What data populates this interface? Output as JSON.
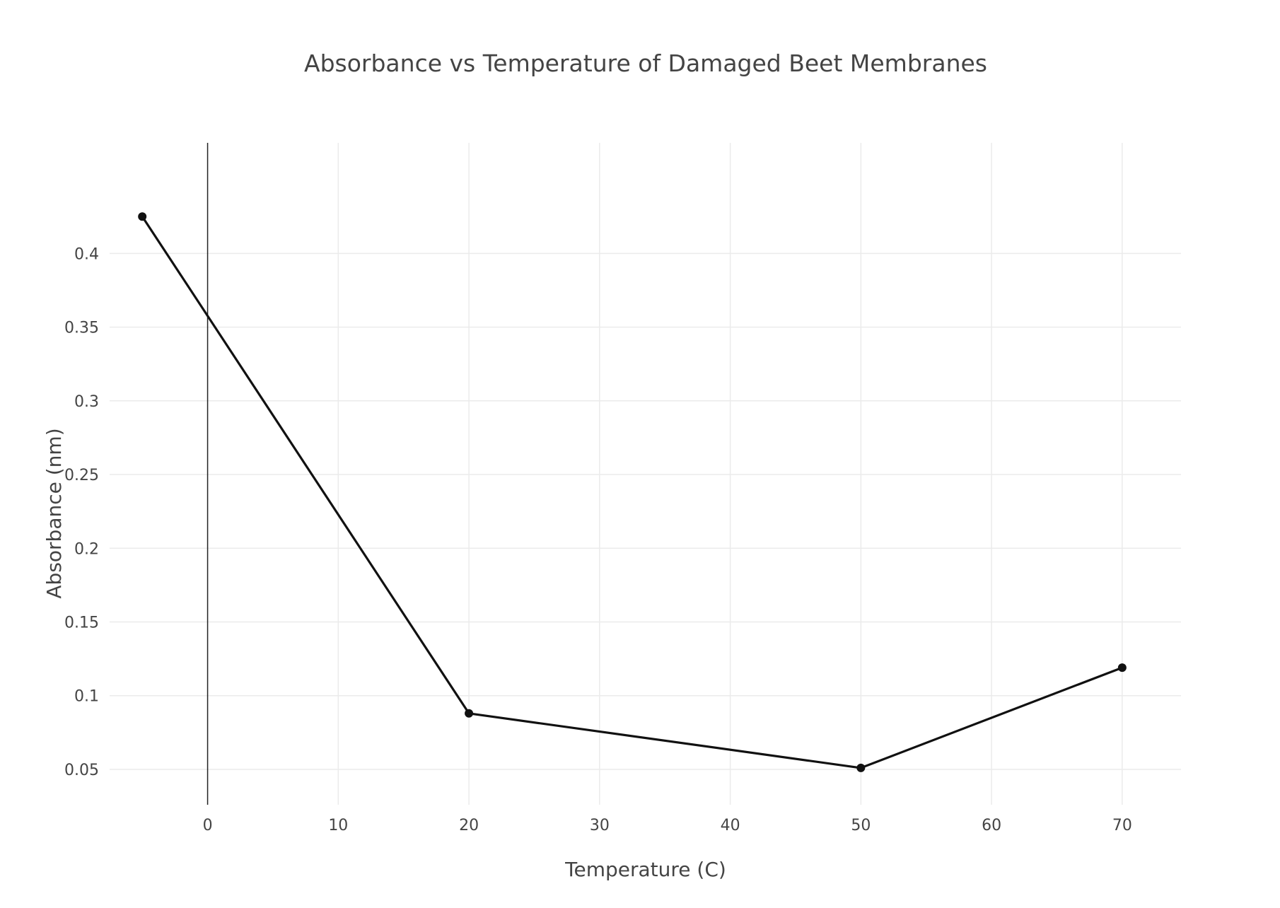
{
  "chart_data": {
    "type": "line",
    "title": "Absorbance vs Temperature of Damaged Beet Membranes",
    "xlabel": "Temperature (C)",
    "ylabel": "Absorbance (nm)",
    "xlim": [
      -7.5,
      74.5
    ],
    "ylim": [
      0.026,
      0.475
    ],
    "x_ticks": [
      0,
      10,
      20,
      30,
      40,
      50,
      60,
      70
    ],
    "x_tick_labels": [
      "0",
      "10",
      "20",
      "30",
      "40",
      "50",
      "60",
      "70"
    ],
    "y_ticks": [
      0.05,
      0.1,
      0.15,
      0.2,
      0.25,
      0.3,
      0.35,
      0.4
    ],
    "y_tick_labels": [
      "0.05",
      "0.1",
      "0.15",
      "0.2",
      "0.25",
      "0.3",
      "0.35",
      "0.4"
    ],
    "grid": true,
    "legend": "none",
    "series": [
      {
        "color": "#111111",
        "x": [
          -5,
          20,
          50,
          70
        ],
        "y": [
          0.425,
          0.088,
          0.051,
          0.119
        ]
      }
    ]
  }
}
